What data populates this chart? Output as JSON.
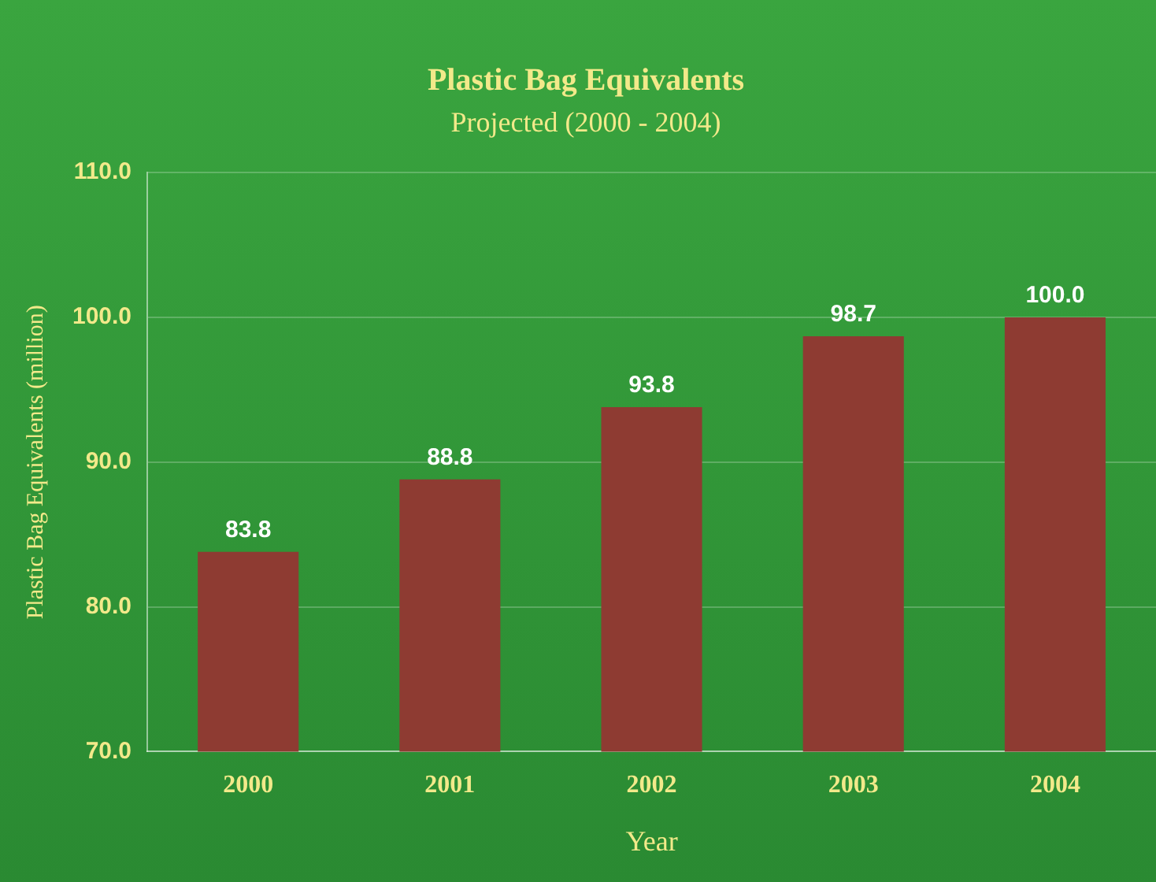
{
  "chart_data": {
    "type": "bar",
    "title": "Plastic Bag Equivalents",
    "subtitle": "Projected (2000 - 2004)",
    "xlabel": "Year",
    "ylabel": "Plastic Bag Equivalents (million)",
    "categories": [
      "2000",
      "2001",
      "2002",
      "2003",
      "2004"
    ],
    "values": [
      83.8,
      88.8,
      93.8,
      98.7,
      100.0
    ],
    "value_labels": [
      "83.8",
      "88.8",
      "93.8",
      "98.7",
      "100.0"
    ],
    "color": "#8e3b32",
    "ylim": [
      70,
      110
    ],
    "yticks": [
      {
        "value": 70,
        "label": "70.0"
      },
      {
        "value": 80,
        "label": "80.0"
      },
      {
        "value": 90,
        "label": "90.0"
      },
      {
        "value": 100,
        "label": "100.0"
      },
      {
        "value": 110,
        "label": "110.0"
      }
    ],
    "grid": "y"
  }
}
